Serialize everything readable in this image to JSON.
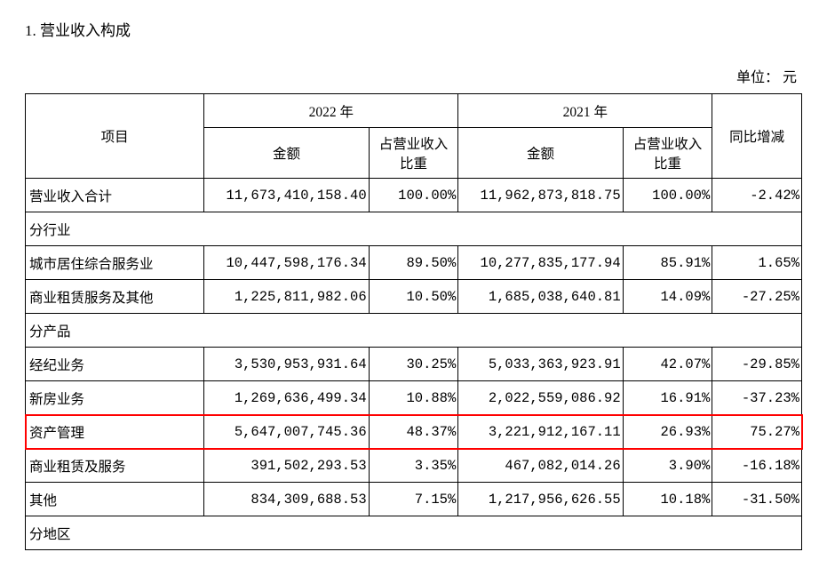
{
  "title": "1. 营业收入构成",
  "unit": "单位： 元",
  "header": {
    "project": "项目",
    "year_2022": "2022 年",
    "year_2021": "2021 年",
    "amount": "金额",
    "pct": "占营业收入比重",
    "yoy": "同比增减"
  },
  "rows": {
    "total": {
      "label": "营业收入合计",
      "a22": "11,673,410,158.40",
      "p22": "100.00%",
      "a21": "11,962,873,818.75",
      "p21": "100.00%",
      "chg": "-2.42%"
    },
    "sec_industry": {
      "label": "分行业"
    },
    "ind1": {
      "label": "城市居住综合服务业",
      "a22": "10,447,598,176.34",
      "p22": "89.50%",
      "a21": "10,277,835,177.94",
      "p21": "85.91%",
      "chg": "1.65%"
    },
    "ind2": {
      "label": "商业租赁服务及其他",
      "a22": "1,225,811,982.06",
      "p22": "10.50%",
      "a21": "1,685,038,640.81",
      "p21": "14.09%",
      "chg": "-27.25%"
    },
    "sec_product": {
      "label": "分产品"
    },
    "prod1": {
      "label": "经纪业务",
      "a22": "3,530,953,931.64",
      "p22": "30.25%",
      "a21": "5,033,363,923.91",
      "p21": "42.07%",
      "chg": "-29.85%"
    },
    "prod2": {
      "label": "新房业务",
      "a22": "1,269,636,499.34",
      "p22": "10.88%",
      "a21": "2,022,559,086.92",
      "p21": "16.91%",
      "chg": "-37.23%"
    },
    "prod3": {
      "label": "资产管理",
      "a22": "5,647,007,745.36",
      "p22": "48.37%",
      "a21": "3,221,912,167.11",
      "p21": "26.93%",
      "chg": "75.27%"
    },
    "prod4": {
      "label": "商业租赁及服务",
      "a22": "391,502,293.53",
      "p22": "3.35%",
      "a21": "467,082,014.26",
      "p21": "3.90%",
      "chg": "-16.18%"
    },
    "prod5": {
      "label": "其他",
      "a22": "834,309,688.53",
      "p22": "7.15%",
      "a21": "1,217,956,626.55",
      "p21": "10.18%",
      "chg": "-31.50%"
    },
    "sec_region": {
      "label": "分地区"
    }
  },
  "highlight_row_key": "prod3",
  "colors": {
    "border": "#000000",
    "highlight": "#ff0000",
    "text": "#000000",
    "bg": "#ffffff"
  }
}
